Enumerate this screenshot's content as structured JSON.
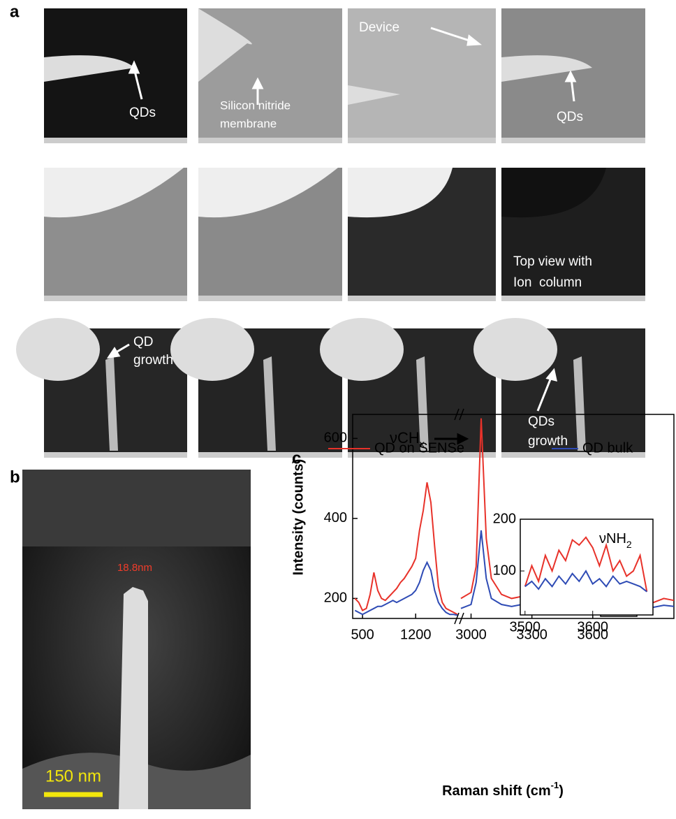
{
  "panels": {
    "a": {
      "label": "a",
      "annotations": {
        "qds_1": "QDs",
        "membrane_1": "Silicon nitride",
        "membrane_2": "membrane",
        "device": "Device",
        "qds_2": "QDs",
        "top_view_1": "Top view with",
        "top_view_2": "Ion  column",
        "growth_1a": "QD",
        "growth_1b": "growth",
        "growth_2a": "QDs",
        "growth_2b": "growth"
      }
    },
    "b": {
      "label": "b",
      "measure": "18.8nm",
      "scale_bar": "150 nm"
    },
    "c": {
      "label": "c"
    }
  },
  "chart_data": [
    {
      "type": "line",
      "xlabel": {
        "text": "Raman shift (cm",
        "sup": "-1",
        "tail": ")"
      },
      "ylabel": "Intensity (counts)",
      "annotation": {
        "text": "νCH",
        "sub": "x"
      },
      "x": [
        400,
        450,
        500,
        550,
        600,
        650,
        700,
        750,
        800,
        850,
        900,
        950,
        1000,
        1050,
        1100,
        1150,
        1200,
        1250,
        1300,
        1350,
        1400,
        1450,
        1500,
        1550,
        1600,
        1650,
        1700,
        1750,
        2000,
        2950,
        3000,
        3025,
        3050,
        3075,
        3100,
        3150,
        3200,
        3250,
        3300,
        3350,
        3400,
        3450,
        3500,
        3550,
        3600,
        3650,
        3700,
        3750,
        3800,
        3850,
        3900,
        3950,
        4000
      ],
      "series": [
        {
          "name": "QD on SENSe",
          "color": "#e8322a",
          "values": [
            200,
            190,
            170,
            175,
            210,
            265,
            220,
            200,
            195,
            205,
            215,
            225,
            240,
            250,
            265,
            280,
            300,
            370,
            420,
            490,
            440,
            330,
            230,
            190,
            175,
            170,
            165,
            160,
            null,
            200,
            215,
            280,
            650,
            350,
            250,
            210,
            200,
            205,
            195,
            205,
            195,
            200,
            205,
            195,
            200,
            215,
            240,
            215,
            195,
            200,
            190,
            200,
            195
          ]
        },
        {
          "name": "QD bulk",
          "color": "#2e4bb5",
          "values": [
            170,
            165,
            160,
            165,
            170,
            175,
            180,
            180,
            185,
            190,
            195,
            190,
            195,
            200,
            205,
            210,
            220,
            240,
            270,
            290,
            270,
            220,
            190,
            175,
            165,
            160,
            160,
            158,
            null,
            175,
            185,
            240,
            370,
            250,
            200,
            185,
            180,
            185,
            178,
            185,
            180,
            182,
            185,
            178,
            182,
            190,
            200,
            190,
            180,
            182,
            178,
            183,
            180
          ]
        }
      ],
      "xlim": [
        370,
        4000
      ],
      "x_break": [
        1750,
        2950
      ],
      "ylim": [
        150,
        660
      ],
      "xticks": [
        500,
        1200,
        3000,
        3300,
        3600
      ],
      "yticks": [
        200,
        400,
        600
      ]
    },
    {
      "type": "line",
      "annotation": {
        "text": "νNH",
        "sub": "2"
      },
      "x": [
        3500,
        3510,
        3520,
        3530,
        3540,
        3550,
        3560,
        3570,
        3580,
        3590,
        3600,
        3610,
        3620,
        3630,
        3640,
        3650,
        3660,
        3670,
        3680
      ],
      "series": [
        {
          "color": "#e8322a",
          "values": [
            70,
            110,
            80,
            130,
            100,
            140,
            120,
            160,
            150,
            165,
            145,
            110,
            150,
            100,
            120,
            90,
            100,
            130,
            60
          ]
        },
        {
          "color": "#2e4bb5",
          "values": [
            70,
            80,
            65,
            85,
            70,
            90,
            75,
            95,
            80,
            100,
            75,
            85,
            70,
            90,
            75,
            80,
            75,
            70,
            60
          ]
        }
      ],
      "xlim": [
        3493,
        3689
      ],
      "ylim": [
        15,
        200
      ],
      "xticks": [
        3500,
        3600
      ],
      "yticks": [
        100,
        200
      ]
    }
  ]
}
